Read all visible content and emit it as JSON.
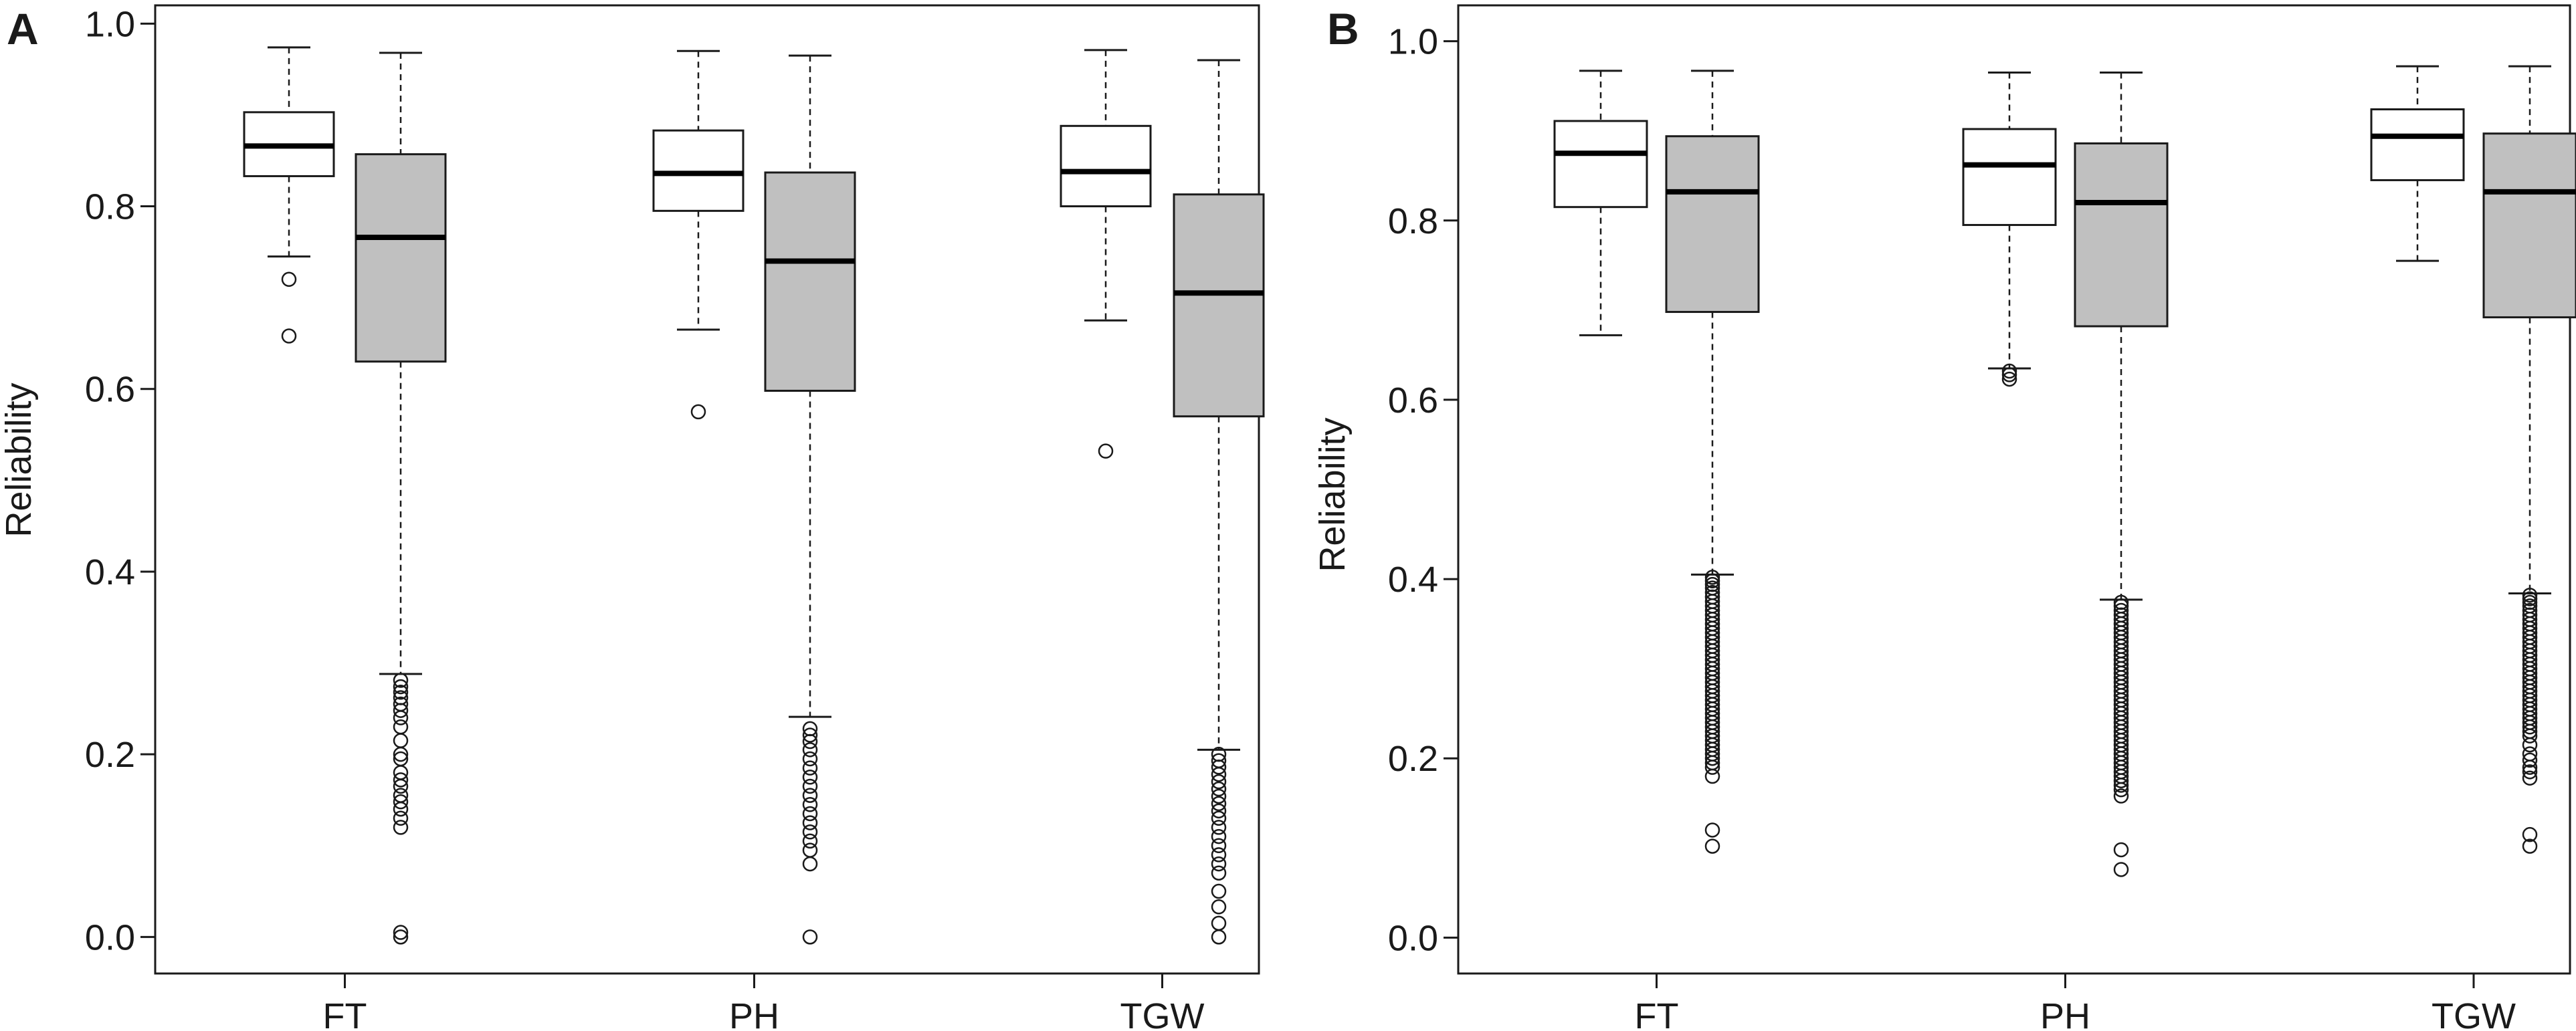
{
  "chart_data": [
    {
      "type": "boxplot",
      "panel_label": "A",
      "title": "",
      "xlabel": "",
      "ylabel": "Reliability",
      "ylim": [
        -0.04,
        1.02
      ],
      "yticks": [
        0.0,
        0.2,
        0.4,
        0.6,
        0.8,
        1.0
      ],
      "ytick_labels": [
        "0.0",
        "0.2",
        "0.4",
        "0.6",
        "0.8",
        "1.0"
      ],
      "categories": [
        "FT",
        "PH",
        "TGW"
      ],
      "series": [
        {
          "name": "white",
          "fill": "#ffffff",
          "boxes": [
            {
              "whisker_low": 0.745,
              "q1": 0.833,
              "median": 0.866,
              "q3": 0.903,
              "whisker_high": 0.974,
              "outliers": [
                0.72,
                0.658
              ]
            },
            {
              "whisker_low": 0.665,
              "q1": 0.795,
              "median": 0.836,
              "q3": 0.883,
              "whisker_high": 0.97,
              "outliers": [
                0.575
              ]
            },
            {
              "whisker_low": 0.675,
              "q1": 0.8,
              "median": 0.838,
              "q3": 0.888,
              "whisker_high": 0.971,
              "outliers": [
                0.532
              ]
            }
          ]
        },
        {
          "name": "grey",
          "fill": "#c0c0c0",
          "boxes": [
            {
              "whisker_low": 0.288,
              "q1": 0.63,
              "median": 0.766,
              "q3": 0.857,
              "whisker_high": 0.968,
              "outliers": [
                0.281,
                0.274,
                0.268,
                0.262,
                0.255,
                0.248,
                0.24,
                0.23,
                0.215,
                0.2,
                0.195,
                0.18,
                0.172,
                0.165,
                0.155,
                0.148,
                0.14,
                0.13,
                0.12,
                0.005,
                0.0
              ]
            },
            {
              "whisker_low": 0.241,
              "q1": 0.598,
              "median": 0.74,
              "q3": 0.837,
              "whisker_high": 0.965,
              "outliers": [
                0.228,
                0.221,
                0.214,
                0.205,
                0.195,
                0.185,
                0.175,
                0.165,
                0.155,
                0.145,
                0.135,
                0.125,
                0.115,
                0.105,
                0.095,
                0.08,
                0.0
              ]
            },
            {
              "whisker_low": 0.205,
              "q1": 0.57,
              "median": 0.705,
              "q3": 0.813,
              "whisker_high": 0.96,
              "outliers": [
                0.2,
                0.193,
                0.186,
                0.178,
                0.17,
                0.162,
                0.154,
                0.146,
                0.138,
                0.13,
                0.12,
                0.11,
                0.1,
                0.09,
                0.08,
                0.07,
                0.05,
                0.033,
                0.015,
                0.0
              ]
            }
          ]
        }
      ]
    },
    {
      "type": "boxplot",
      "panel_label": "B",
      "title": "",
      "xlabel": "",
      "ylabel": "Reliability",
      "ylim": [
        -0.04,
        1.04
      ],
      "yticks": [
        0.0,
        0.2,
        0.4,
        0.6,
        0.8,
        1.0
      ],
      "ytick_labels": [
        "0.0",
        "0.2",
        "0.4",
        "0.6",
        "0.8",
        "1.0"
      ],
      "categories": [
        "FT",
        "PH",
        "TGW"
      ],
      "series": [
        {
          "name": "white",
          "fill": "#ffffff",
          "boxes": [
            {
              "whisker_low": 0.672,
              "q1": 0.815,
              "median": 0.875,
              "q3": 0.911,
              "whisker_high": 0.967,
              "outliers": []
            },
            {
              "whisker_low": 0.635,
              "q1": 0.795,
              "median": 0.862,
              "q3": 0.902,
              "whisker_high": 0.965,
              "outliers": [
                0.632,
                0.628,
                0.623
              ]
            },
            {
              "whisker_low": 0.755,
              "q1": 0.845,
              "median": 0.894,
              "q3": 0.924,
              "whisker_high": 0.972,
              "outliers": []
            }
          ]
        },
        {
          "name": "grey",
          "fill": "#c0c0c0",
          "boxes": [
            {
              "whisker_low": 0.405,
              "q1": 0.698,
              "median": 0.832,
              "q3": 0.894,
              "whisker_high": 0.967,
              "outliers": [
                0.402,
                0.398,
                0.394,
                0.39,
                0.385,
                0.38,
                0.375,
                0.37,
                0.365,
                0.36,
                0.355,
                0.35,
                0.345,
                0.34,
                0.335,
                0.33,
                0.325,
                0.32,
                0.315,
                0.31,
                0.305,
                0.3,
                0.295,
                0.29,
                0.285,
                0.28,
                0.275,
                0.27,
                0.265,
                0.26,
                0.255,
                0.25,
                0.245,
                0.24,
                0.235,
                0.23,
                0.225,
                0.22,
                0.215,
                0.21,
                0.205,
                0.2,
                0.195,
                0.19,
                0.18,
                0.12,
                0.102
              ]
            },
            {
              "whisker_low": 0.377,
              "q1": 0.682,
              "median": 0.82,
              "q3": 0.886,
              "whisker_high": 0.965,
              "outliers": [
                0.374,
                0.37,
                0.365,
                0.36,
                0.355,
                0.35,
                0.345,
                0.34,
                0.335,
                0.33,
                0.325,
                0.32,
                0.315,
                0.31,
                0.305,
                0.3,
                0.295,
                0.29,
                0.285,
                0.28,
                0.275,
                0.27,
                0.265,
                0.26,
                0.255,
                0.25,
                0.245,
                0.24,
                0.235,
                0.23,
                0.225,
                0.22,
                0.215,
                0.21,
                0.205,
                0.2,
                0.195,
                0.19,
                0.185,
                0.18,
                0.175,
                0.17,
                0.165,
                0.158,
                0.098,
                0.076
              ]
            },
            {
              "whisker_low": 0.384,
              "q1": 0.692,
              "median": 0.832,
              "q3": 0.897,
              "whisker_high": 0.972,
              "outliers": [
                0.382,
                0.378,
                0.374,
                0.37,
                0.365,
                0.36,
                0.355,
                0.35,
                0.345,
                0.34,
                0.335,
                0.33,
                0.325,
                0.32,
                0.315,
                0.31,
                0.305,
                0.3,
                0.295,
                0.29,
                0.285,
                0.28,
                0.275,
                0.27,
                0.265,
                0.26,
                0.255,
                0.25,
                0.245,
                0.24,
                0.235,
                0.23,
                0.225,
                0.215,
                0.205,
                0.198,
                0.19,
                0.185,
                0.178,
                0.115,
                0.102
              ]
            }
          ]
        }
      ]
    }
  ]
}
